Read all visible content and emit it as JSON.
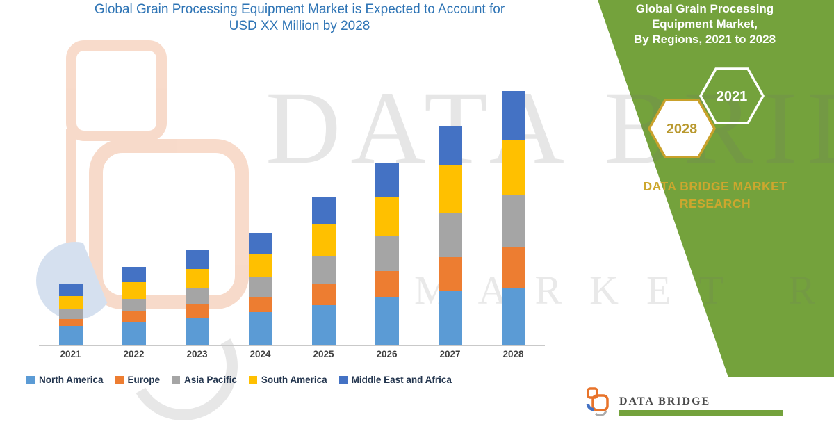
{
  "title": {
    "text": "Global Grain Processing Equipment Market is Expected to Account for\nUSD XX Million by 2028"
  },
  "chart_data": {
    "type": "bar",
    "stacked": true,
    "title": "Global Grain Processing Equipment Market is Expected to Account for USD XX Million by 2028",
    "xlabel": "",
    "ylabel": "",
    "y_axis_visible": false,
    "grid": false,
    "legend_position": "bottom",
    "units": "relative index (values shown as XX Million, axis unlabeled)",
    "categories": [
      "2021",
      "2022",
      "2023",
      "2024",
      "2025",
      "2026",
      "2027",
      "2028"
    ],
    "series": [
      {
        "name": "North America",
        "color": "#5B9BD5",
        "values": [
          28,
          34,
          40,
          47,
          57,
          68,
          78,
          82
        ]
      },
      {
        "name": "Europe",
        "color": "#ED7D31",
        "values": [
          10,
          14,
          18,
          22,
          30,
          38,
          48,
          58
        ]
      },
      {
        "name": "Asia Pacific",
        "color": "#A5A5A5",
        "values": [
          14,
          18,
          23,
          28,
          40,
          50,
          62,
          75
        ]
      },
      {
        "name": "South America",
        "color": "#FFC000",
        "values": [
          18,
          24,
          28,
          33,
          45,
          55,
          68,
          78
        ]
      },
      {
        "name": "Middle East and Africa",
        "color": "#4472C4",
        "values": [
          18,
          22,
          28,
          30,
          40,
          49,
          57,
          69
        ]
      }
    ]
  },
  "side_panel": {
    "title": "Global Grain Processing\nEquipment Market,\nBy Regions, 2021 to 2028",
    "hex_start_year": "2021",
    "hex_end_year": "2028",
    "brand": "DATA BRIDGE MARKET\nRESEARCH",
    "green": "#74A23C",
    "gold": "#CDA72E"
  },
  "watermark": {
    "line1": "DATA BRIDGE",
    "line2": "MARKET RESEARCH"
  },
  "footer_logo": {
    "name": "DATA BRIDGE"
  }
}
